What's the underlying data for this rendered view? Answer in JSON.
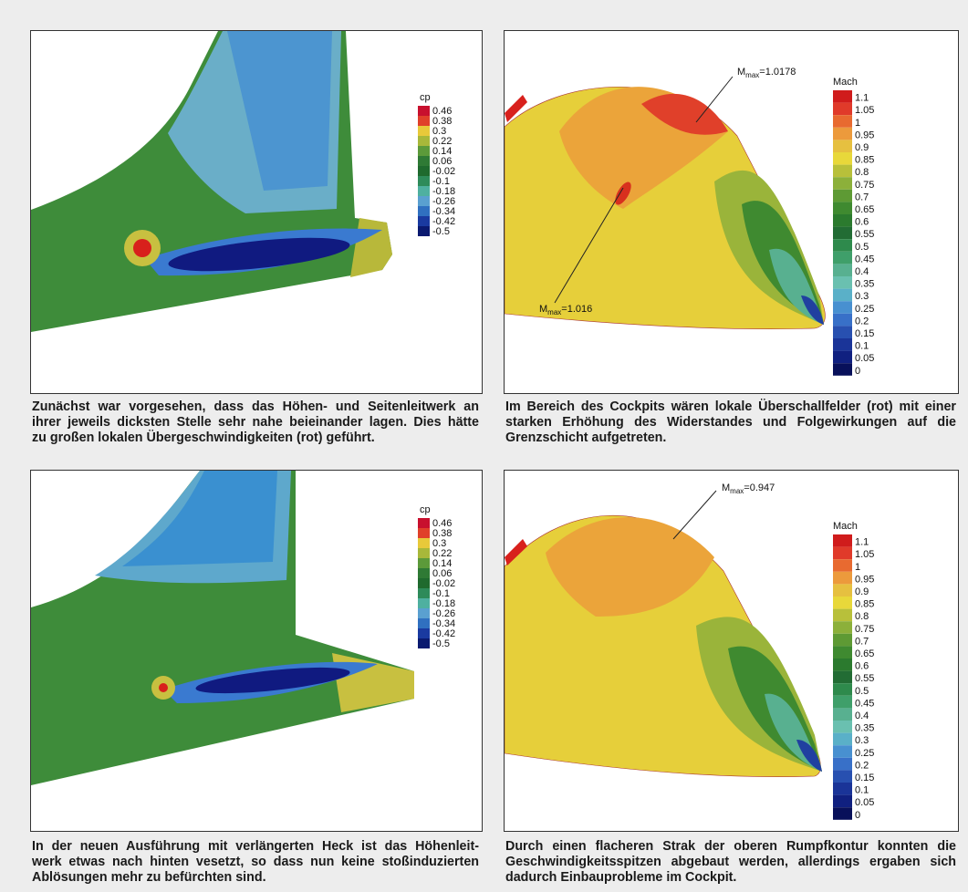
{
  "panels": [
    {
      "legend": {
        "title": "cp",
        "labels": [
          "0.46",
          "0.38",
          "0.3",
          "0.22",
          "0.14",
          "0.06",
          "-0.02",
          "-0.1",
          "-0.18",
          "-0.26",
          "-0.34",
          "-0.42",
          "-0.5"
        ]
      },
      "annotations": [],
      "caption": [
        "Zunächst war vorgesehen, dass das Höhen- und Seitenleitwerk an",
        "ihrer jeweils dicksten Stelle sehr nahe beieinander lagen. Dies hätte",
        "zu großen lokalen Übergeschwindigkeiten (rot) geführt."
      ]
    },
    {
      "legend": {
        "title": "Mach",
        "labels": [
          "1.1",
          "1.05",
          "1",
          "0.95",
          "0.9",
          "0.85",
          "0.8",
          "0.75",
          "0.7",
          "0.65",
          "0.6",
          "0.55",
          "0.5",
          "0.45",
          "0.4",
          "0.35",
          "0.3",
          "0.25",
          "0.2",
          "0.15",
          "0.1",
          "0.05",
          "0"
        ]
      },
      "annotations": [
        {
          "symbol": "M",
          "subscript": "max",
          "text": "=1.0178"
        },
        {
          "symbol": "M",
          "subscript": "max",
          "text": "=1.016"
        }
      ],
      "caption": [
        "Im Bereich des Cockpits wären lokale Überschallfelder (rot) mit einer",
        "starken Erhöhung des Widerstandes und Folgewirkungen auf die",
        "Grenzschicht aufgetreten."
      ]
    },
    {
      "legend": {
        "title": "cp",
        "labels": [
          "0.46",
          "0.38",
          "0.3",
          "0.22",
          "0.14",
          "0.06",
          "-0.02",
          "-0.1",
          "-0.18",
          "-0.26",
          "-0.34",
          "-0.42",
          "-0.5"
        ]
      },
      "annotations": [],
      "caption": [
        "In der neuen Ausführung mit verlängerten Heck ist das Höhenleit-",
        "werk etwas nach hinten vesetzt, so dass nun keine stoßinduzierten",
        "Ablösungen mehr zu befürchten sind."
      ]
    },
    {
      "legend": {
        "title": "Mach",
        "labels": [
          "1.1",
          "1.05",
          "1",
          "0.95",
          "0.9",
          "0.85",
          "0.8",
          "0.75",
          "0.7",
          "0.65",
          "0.6",
          "0.55",
          "0.5",
          "0.45",
          "0.4",
          "0.35",
          "0.3",
          "0.25",
          "0.2",
          "0.15",
          "0.1",
          "0.05",
          "0"
        ]
      },
      "annotations": [
        {
          "symbol": "M",
          "subscript": "max",
          "text": "=0.947"
        }
      ],
      "caption": [
        "Durch einen flacheren Strak der oberen Rumpfkontur konnten die",
        "Geschwindigkeitsspitzen abgebaut werden, allerdings ergaben sich",
        "dadurch Einbauprobleme im Cockpit."
      ]
    }
  ]
}
